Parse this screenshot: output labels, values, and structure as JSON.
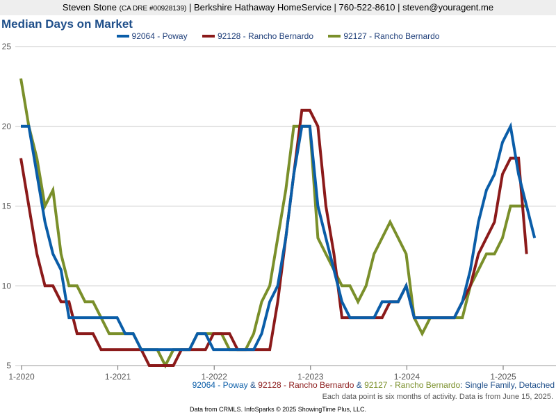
{
  "header": {
    "agent_name": "Steven Stone",
    "dre": "(CA DRE #00928139)",
    "rest": "| Berkshire Hathaway HomeService | 760-522-8610 | steven@youragent.me"
  },
  "chart_data": {
    "type": "line",
    "title": "Median Days on Market",
    "xlabel": "",
    "ylabel": "",
    "ylim": [
      5,
      25
    ],
    "yticks": [
      5,
      10,
      15,
      20,
      25
    ],
    "xticks": [
      "1-2020",
      "1-2021",
      "1-2022",
      "1-2023",
      "1-2024",
      "1-2025"
    ],
    "x_start": "1-2020",
    "x_step": "1 month",
    "grid": true,
    "legend_position": "top",
    "series": [
      {
        "name": "92064 - Poway",
        "color": "#0a5da8",
        "values": [
          20,
          20,
          17,
          14,
          12,
          11,
          8,
          8,
          8,
          8,
          8,
          8,
          8,
          7,
          7,
          6,
          6,
          6,
          6,
          6,
          6,
          6,
          7,
          7,
          6,
          6,
          6,
          6,
          6,
          6,
          7,
          9,
          10,
          13,
          17,
          20,
          20,
          15,
          13,
          11,
          9,
          8,
          8,
          8,
          8,
          9,
          9,
          9,
          10,
          8,
          8,
          8,
          8,
          8,
          8,
          9,
          11,
          14,
          16,
          17,
          19,
          20,
          17,
          15,
          13
        ]
      },
      {
        "name": "92128 - Rancho Bernardo",
        "color": "#8b1a1a",
        "values": [
          18,
          15,
          12,
          10,
          10,
          9,
          9,
          7,
          7,
          7,
          6,
          6,
          6,
          6,
          6,
          6,
          5,
          5,
          5,
          5,
          6,
          6,
          6,
          6,
          7,
          7,
          7,
          6,
          6,
          6,
          6,
          6,
          9,
          13,
          17,
          21,
          21,
          20,
          15,
          12,
          8,
          8,
          8,
          8,
          8,
          8,
          9,
          9,
          10,
          8,
          8,
          8,
          8,
          8,
          8,
          9,
          10,
          12,
          13,
          14,
          17,
          18,
          18,
          12
        ]
      },
      {
        "name": "92127 - Rancho Bernardo",
        "color": "#7a8f2a",
        "values": [
          23,
          20,
          18,
          15,
          16,
          12,
          10,
          10,
          9,
          9,
          8,
          7,
          7,
          7,
          7,
          6,
          6,
          6,
          5,
          6,
          6,
          6,
          7,
          7,
          7,
          7,
          6,
          6,
          6,
          7,
          9,
          10,
          13,
          16,
          20,
          20,
          20,
          13,
          12,
          11,
          10,
          10,
          9,
          10,
          12,
          13,
          14,
          13,
          12,
          8,
          7,
          8,
          8,
          8,
          8,
          8,
          10,
          11,
          12,
          12,
          13,
          15,
          15,
          15
        ]
      }
    ]
  },
  "caption": {
    "poway": "92064 - Poway",
    "amp1": " & ",
    "rb128": "92128 - Rancho Bernardo",
    "amp2": " & ",
    "rb127": "92127 - Rancho Bernardo",
    "suffix": ": Single Family, Detached"
  },
  "note": "Each data point is six months of activity. Data is from June 15, 2025.",
  "footer": "Data from CRMLS. InfoSparks © 2025 ShowingTime Plus, LLC."
}
